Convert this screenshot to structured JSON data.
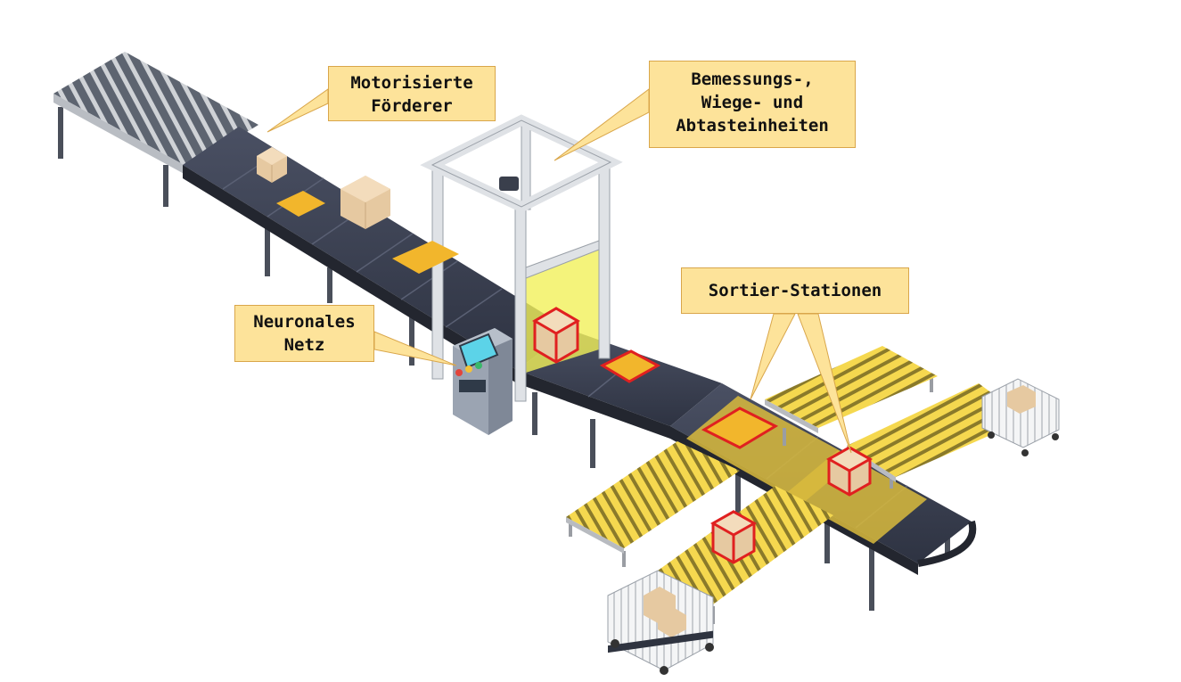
{
  "callouts": {
    "conveyor": {
      "line1": "Motorisierte",
      "line2": "Förderer"
    },
    "scanner": {
      "line1": "Bemessungs-,",
      "line2": "Wiege- und",
      "line3": "Abtasteinheiten"
    },
    "network": {
      "line1": "Neuronales",
      "line2": "Netz"
    },
    "sorting": {
      "line1": "Sortier-Stationen"
    }
  },
  "colors": {
    "callout_fill": "#fde39a",
    "callout_border": "#d9a64a",
    "belt": "#3a4052",
    "rollers": "#f2d34a",
    "highlight": "#e02020",
    "scanner_frame": "#dfe2e6"
  },
  "icons": [
    "conveyor-belt",
    "roller-conveyor",
    "cardboard-box",
    "envelope-package",
    "scanner-gate",
    "control-panel",
    "cargo-cart"
  ]
}
